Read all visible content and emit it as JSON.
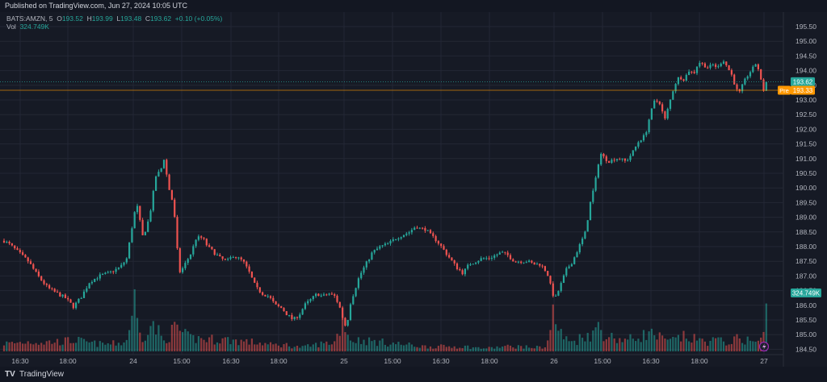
{
  "header": {
    "published": "Published on TradingView.com, Jun 27, 2024 10:05 UTC"
  },
  "legend": {
    "symbol": "BATS:AMZN, 5",
    "open_label": "O",
    "open": "193.52",
    "high_label": "H",
    "high": "193.99",
    "low_label": "L",
    "low": "193.48",
    "close_label": "C",
    "close": "193.62",
    "change": "+0.10 (+0.05%)",
    "vol_label": "Vol",
    "vol": "324.749K"
  },
  "footer": {
    "logo": "TV",
    "brand": "TradingView"
  },
  "colors": {
    "up": "#26a69a",
    "down": "#ef5350",
    "background": "#161a25",
    "pre_line": "#ff9800",
    "text": "#b2b5be"
  },
  "chart_data": {
    "type": "candlestick",
    "symbol": "BATS:AMZN",
    "interval": "5",
    "y_ticks": [
      "195.50",
      "195.00",
      "194.50",
      "194.00",
      "193.50",
      "193.00",
      "192.50",
      "192.00",
      "191.50",
      "191.00",
      "190.50",
      "190.00",
      "189.50",
      "189.00",
      "188.50",
      "188.00",
      "187.50",
      "187.00",
      "186.50",
      "186.00",
      "185.50",
      "185.00",
      "184.50"
    ],
    "ylim": [
      184.4,
      195.85
    ],
    "x_ticks": [
      "16:30",
      "18:00",
      "24",
      "15:00",
      "16:30",
      "18:00",
      "25",
      "15:00",
      "16:30",
      "18:00",
      "26",
      "15:00",
      "16:30",
      "18:00",
      "27"
    ],
    "price_labels": [
      {
        "label": "",
        "value": "193.62",
        "price": 193.62,
        "color": "#26a69a"
      },
      {
        "label": "Pre",
        "value": "193.33",
        "price": 193.33,
        "color": "#ff9800"
      }
    ],
    "volume_label": {
      "value": "324.749K",
      "color": "#26a69a"
    },
    "close_path": [
      [
        0,
        188.2
      ],
      [
        8,
        188.05
      ],
      [
        18,
        187.8
      ],
      [
        30,
        187.5
      ],
      [
        42,
        187.0
      ],
      [
        54,
        186.6
      ],
      [
        66,
        186.4
      ],
      [
        76,
        186.25
      ],
      [
        86,
        185.95
      ],
      [
        96,
        186.3
      ],
      [
        106,
        186.8
      ],
      [
        118,
        187.0
      ],
      [
        130,
        187.1
      ],
      [
        144,
        187.3
      ],
      [
        152,
        187.6
      ],
      [
        158,
        188.6
      ],
      [
        164,
        189.5
      ],
      [
        172,
        188.3
      ],
      [
        180,
        189.0
      ],
      [
        188,
        190.4
      ],
      [
        194,
        190.6
      ],
      [
        198,
        191.0
      ],
      [
        204,
        190.0
      ],
      [
        210,
        189.4
      ],
      [
        214,
        188.0
      ],
      [
        218,
        187.1
      ],
      [
        224,
        187.4
      ],
      [
        232,
        187.8
      ],
      [
        238,
        188.3
      ],
      [
        246,
        188.3
      ],
      [
        252,
        188.0
      ],
      [
        260,
        187.8
      ],
      [
        268,
        187.6
      ],
      [
        276,
        187.5
      ],
      [
        284,
        187.7
      ],
      [
        290,
        187.6
      ],
      [
        296,
        187.5
      ],
      [
        304,
        187.1
      ],
      [
        312,
        186.6
      ],
      [
        320,
        186.4
      ],
      [
        328,
        186.3
      ],
      [
        336,
        186.0
      ],
      [
        344,
        185.9
      ],
      [
        350,
        185.7
      ],
      [
        358,
        185.5
      ],
      [
        366,
        185.7
      ],
      [
        372,
        186.0
      ],
      [
        380,
        186.2
      ],
      [
        388,
        186.4
      ],
      [
        394,
        186.3
      ],
      [
        402,
        186.4
      ],
      [
        410,
        186.3
      ],
      [
        416,
        185.9
      ],
      [
        420,
        185.5
      ],
      [
        424,
        185.2
      ],
      [
        428,
        186.0
      ],
      [
        434,
        186.5
      ],
      [
        440,
        187.0
      ],
      [
        448,
        187.4
      ],
      [
        456,
        187.8
      ],
      [
        466,
        188.0
      ],
      [
        476,
        188.1
      ],
      [
        486,
        188.3
      ],
      [
        494,
        188.4
      ],
      [
        502,
        188.5
      ],
      [
        510,
        188.7
      ],
      [
        516,
        188.6
      ],
      [
        522,
        188.6
      ],
      [
        528,
        188.4
      ],
      [
        536,
        188.2
      ],
      [
        544,
        187.9
      ],
      [
        552,
        187.6
      ],
      [
        560,
        187.3
      ],
      [
        568,
        187.1
      ],
      [
        576,
        187.4
      ],
      [
        584,
        187.5
      ],
      [
        592,
        187.6
      ],
      [
        600,
        187.6
      ],
      [
        608,
        187.7
      ],
      [
        616,
        187.8
      ],
      [
        624,
        187.7
      ],
      [
        632,
        187.5
      ],
      [
        640,
        187.5
      ],
      [
        648,
        187.5
      ],
      [
        656,
        187.4
      ],
      [
        664,
        187.4
      ],
      [
        670,
        187.2
      ],
      [
        674,
        187.0
      ],
      [
        678,
        186.5
      ],
      [
        682,
        186.2
      ],
      [
        688,
        186.6
      ],
      [
        696,
        187.2
      ],
      [
        704,
        187.5
      ],
      [
        712,
        188.0
      ],
      [
        720,
        188.5
      ],
      [
        726,
        189.5
      ],
      [
        732,
        190.2
      ],
      [
        738,
        191.2
      ],
      [
        744,
        191.0
      ],
      [
        750,
        190.9
      ],
      [
        756,
        191.0
      ],
      [
        762,
        191.0
      ],
      [
        770,
        190.9
      ],
      [
        778,
        191.2
      ],
      [
        786,
        191.6
      ],
      [
        794,
        191.8
      ],
      [
        800,
        192.5
      ],
      [
        806,
        193.0
      ],
      [
        812,
        192.9
      ],
      [
        818,
        192.3
      ],
      [
        824,
        192.9
      ],
      [
        830,
        193.5
      ],
      [
        836,
        193.8
      ],
      [
        842,
        193.7
      ],
      [
        848,
        194.0
      ],
      [
        854,
        193.9
      ],
      [
        860,
        194.3
      ],
      [
        866,
        194.2
      ],
      [
        872,
        194.1
      ],
      [
        878,
        194.2
      ],
      [
        884,
        194.1
      ],
      [
        890,
        194.4
      ],
      [
        896,
        194.1
      ],
      [
        902,
        193.8
      ],
      [
        906,
        193.4
      ],
      [
        910,
        193.2
      ],
      [
        916,
        193.6
      ],
      [
        922,
        193.9
      ],
      [
        928,
        194.1
      ],
      [
        932,
        194.3
      ],
      [
        936,
        193.8
      ],
      [
        940,
        193.3
      ],
      [
        944,
        193.62
      ]
    ],
    "volume_profile": [
      [
        0,
        10
      ],
      [
        10,
        10
      ],
      [
        20,
        11
      ],
      [
        30,
        12
      ],
      [
        40,
        12
      ],
      [
        50,
        11
      ],
      [
        60,
        12
      ],
      [
        70,
        12
      ],
      [
        80,
        13
      ],
      [
        90,
        14
      ],
      [
        100,
        11
      ],
      [
        110,
        10
      ],
      [
        120,
        9
      ],
      [
        130,
        9
      ],
      [
        140,
        10
      ],
      [
        150,
        11
      ],
      [
        156,
        28
      ],
      [
        160,
        78
      ],
      [
        164,
        40
      ],
      [
        170,
        14
      ],
      [
        180,
        34
      ],
      [
        190,
        26
      ],
      [
        198,
        12
      ],
      [
        204,
        20
      ],
      [
        210,
        26
      ],
      [
        214,
        32
      ],
      [
        220,
        22
      ],
      [
        230,
        16
      ],
      [
        240,
        16
      ],
      [
        250,
        15
      ],
      [
        260,
        15
      ],
      [
        270,
        15
      ],
      [
        280,
        14
      ],
      [
        290,
        13
      ],
      [
        300,
        12
      ],
      [
        310,
        11
      ],
      [
        320,
        10
      ],
      [
        330,
        8
      ],
      [
        340,
        8
      ],
      [
        350,
        8
      ],
      [
        360,
        6
      ],
      [
        370,
        5
      ],
      [
        380,
        7
      ],
      [
        390,
        9
      ],
      [
        400,
        10
      ],
      [
        410,
        12
      ],
      [
        416,
        30
      ],
      [
        420,
        45
      ],
      [
        424,
        30
      ],
      [
        428,
        14
      ],
      [
        440,
        14
      ],
      [
        450,
        13
      ],
      [
        460,
        12
      ],
      [
        470,
        11
      ],
      [
        480,
        10
      ],
      [
        490,
        9
      ],
      [
        500,
        8
      ],
      [
        510,
        7
      ],
      [
        520,
        6
      ],
      [
        530,
        6
      ],
      [
        540,
        6
      ],
      [
        550,
        6
      ],
      [
        560,
        6
      ],
      [
        570,
        6
      ],
      [
        580,
        5
      ],
      [
        590,
        4
      ],
      [
        600,
        4
      ],
      [
        610,
        5
      ],
      [
        620,
        6
      ],
      [
        630,
        6
      ],
      [
        640,
        6
      ],
      [
        650,
        5
      ],
      [
        660,
        5
      ],
      [
        670,
        6
      ],
      [
        676,
        20
      ],
      [
        680,
        50
      ],
      [
        684,
        34
      ],
      [
        688,
        24
      ],
      [
        694,
        16
      ],
      [
        700,
        12
      ],
      [
        710,
        14
      ],
      [
        720,
        22
      ],
      [
        730,
        20
      ],
      [
        736,
        36
      ],
      [
        740,
        24
      ],
      [
        750,
        18
      ],
      [
        760,
        16
      ],
      [
        770,
        14
      ],
      [
        780,
        16
      ],
      [
        790,
        20
      ],
      [
        800,
        22
      ],
      [
        810,
        18
      ],
      [
        820,
        12
      ],
      [
        830,
        14
      ],
      [
        840,
        18
      ],
      [
        850,
        16
      ],
      [
        860,
        14
      ],
      [
        870,
        12
      ],
      [
        880,
        14
      ],
      [
        890,
        12
      ],
      [
        900,
        12
      ],
      [
        910,
        16
      ],
      [
        920,
        14
      ],
      [
        930,
        12
      ],
      [
        940,
        14
      ],
      [
        944,
        68
      ]
    ]
  }
}
